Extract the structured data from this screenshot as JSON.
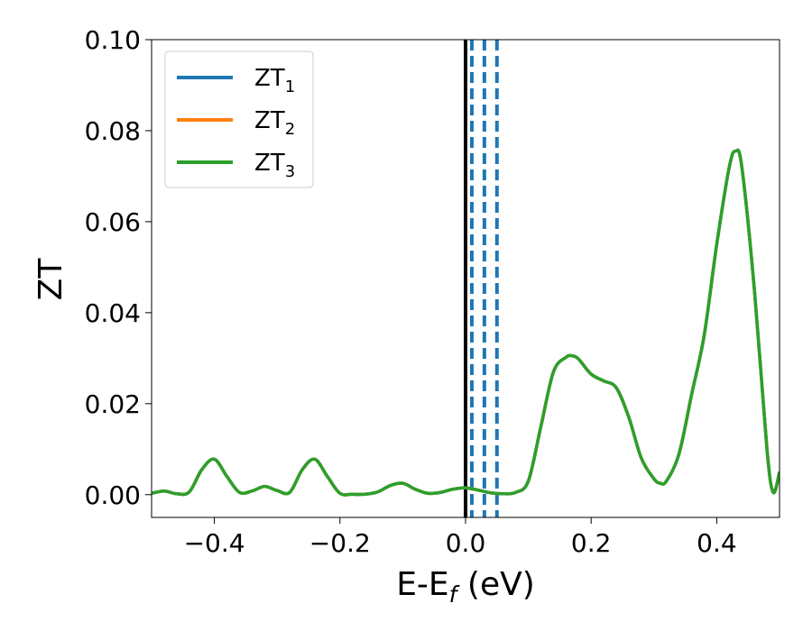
{
  "chart_data": {
    "type": "line",
    "xlabel": "E-E",
    "xlabel_subscript": "f",
    "xlabel_unit": " (eV)",
    "ylabel": "ZT",
    "xlim": [
      -0.5,
      0.5
    ],
    "ylim": [
      -0.005,
      0.1
    ],
    "x_ticks": [
      -0.4,
      -0.2,
      0.0,
      0.2,
      0.4
    ],
    "x_tick_labels": [
      "−0.4",
      "−0.2",
      "0.0",
      "0.2",
      "0.4"
    ],
    "y_ticks": [
      0.0,
      0.02,
      0.04,
      0.06,
      0.08,
      0.1
    ],
    "y_tick_labels": [
      "0.00",
      "0.02",
      "0.04",
      "0.06",
      "0.08",
      "0.10"
    ],
    "grid": false,
    "legend_position": "top-left",
    "reference_lines": [
      {
        "x": 0.0,
        "style": "solid",
        "color": "#000000"
      },
      {
        "x": 0.01,
        "style": "dashed",
        "color": "#1f77b4"
      },
      {
        "x": 0.03,
        "style": "dashed",
        "color": "#1f77b4"
      },
      {
        "x": 0.05,
        "style": "dashed",
        "color": "#1f77b4"
      }
    ],
    "x": [
      -0.5,
      -0.48,
      -0.46,
      -0.44,
      -0.42,
      -0.4,
      -0.38,
      -0.36,
      -0.34,
      -0.32,
      -0.3,
      -0.28,
      -0.26,
      -0.24,
      -0.22,
      -0.2,
      -0.18,
      -0.16,
      -0.14,
      -0.12,
      -0.1,
      -0.08,
      -0.06,
      -0.04,
      -0.02,
      0.0,
      0.02,
      0.04,
      0.06,
      0.08,
      0.1,
      0.12,
      0.14,
      0.16,
      0.17,
      0.18,
      0.2,
      0.22,
      0.24,
      0.26,
      0.28,
      0.3,
      0.31,
      0.32,
      0.34,
      0.36,
      0.38,
      0.4,
      0.42,
      0.43,
      0.44,
      0.46,
      0.48,
      0.49,
      0.5
    ],
    "series": [
      {
        "name": "ZT",
        "subscript": "1",
        "color": "#1f77b4",
        "values": [
          0.0003,
          0.0008,
          0.0002,
          0.0006,
          0.0055,
          0.0078,
          0.004,
          0.0005,
          0.0008,
          0.0018,
          0.0009,
          0.0005,
          0.0055,
          0.0078,
          0.004,
          0.0003,
          0.0001,
          0.0001,
          0.0006,
          0.002,
          0.0025,
          0.0012,
          0.0003,
          0.0005,
          0.0012,
          0.0015,
          0.001,
          0.0004,
          0.0002,
          0.0005,
          0.003,
          0.015,
          0.027,
          0.0302,
          0.0305,
          0.0298,
          0.0265,
          0.025,
          0.0235,
          0.017,
          0.008,
          0.0035,
          0.0025,
          0.003,
          0.009,
          0.022,
          0.035,
          0.055,
          0.072,
          0.0755,
          0.072,
          0.045,
          0.01,
          0.0005,
          0.005
        ]
      },
      {
        "name": "ZT",
        "subscript": "2",
        "color": "#ff7f0e",
        "values": [
          0.0003,
          0.0008,
          0.0002,
          0.0006,
          0.0055,
          0.0078,
          0.004,
          0.0005,
          0.0008,
          0.0018,
          0.0009,
          0.0005,
          0.0055,
          0.0078,
          0.004,
          0.0003,
          0.0001,
          0.0001,
          0.0006,
          0.002,
          0.0025,
          0.0012,
          0.0003,
          0.0005,
          0.0012,
          0.0015,
          0.001,
          0.0004,
          0.0002,
          0.0005,
          0.003,
          0.015,
          0.027,
          0.0302,
          0.0305,
          0.0298,
          0.0265,
          0.025,
          0.0235,
          0.017,
          0.008,
          0.0035,
          0.0025,
          0.003,
          0.009,
          0.022,
          0.035,
          0.055,
          0.072,
          0.0755,
          0.072,
          0.045,
          0.01,
          0.0005,
          0.005
        ]
      },
      {
        "name": "ZT",
        "subscript": "3",
        "color": "#2ca02c",
        "values": [
          0.0003,
          0.0008,
          0.0002,
          0.0006,
          0.0055,
          0.0078,
          0.004,
          0.0005,
          0.0008,
          0.0018,
          0.0009,
          0.0005,
          0.0055,
          0.0078,
          0.004,
          0.0003,
          0.0001,
          0.0001,
          0.0006,
          0.002,
          0.0025,
          0.0012,
          0.0003,
          0.0005,
          0.0012,
          0.0015,
          0.001,
          0.0004,
          0.0002,
          0.0005,
          0.003,
          0.015,
          0.027,
          0.0302,
          0.0305,
          0.0298,
          0.0265,
          0.025,
          0.0235,
          0.017,
          0.008,
          0.0035,
          0.0025,
          0.003,
          0.009,
          0.022,
          0.035,
          0.055,
          0.072,
          0.0755,
          0.072,
          0.045,
          0.01,
          0.0005,
          0.005
        ]
      }
    ]
  }
}
